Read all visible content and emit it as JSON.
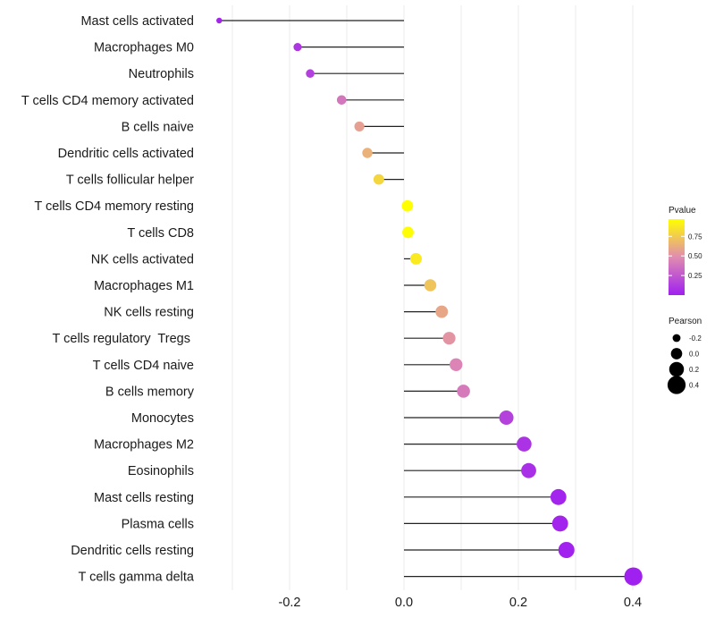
{
  "chart_data": {
    "type": "lollipop",
    "title": "",
    "xlabel": "",
    "ylabel": "",
    "xlim": [
      -0.335,
      0.42
    ],
    "x_ticks": [
      -0.2,
      0.0,
      0.2,
      0.4
    ],
    "x_tick_labels": [
      "-0.2",
      "0.0",
      "0.2",
      "0.4"
    ],
    "x_minor_grid": [
      -0.3,
      -0.1,
      0.1,
      0.3
    ],
    "grid": true,
    "categories": [
      "Mast cells activated",
      "Macrophages M0",
      "Neutrophils",
      "T cells CD4 memory activated",
      "B cells naive",
      "Dendritic cells activated",
      "T cells follicular helper",
      "T cells CD4 memory resting",
      "T cells CD8",
      "NK cells activated",
      "Macrophages M1",
      "NK cells resting",
      "T cells regulatory  Tregs ",
      "T cells CD4 naive",
      "B cells memory",
      "Monocytes",
      "Macrophages M2",
      "Eosinophils",
      "Mast cells resting",
      "Plasma cells",
      "Dendritic cells resting",
      "T cells gamma delta"
    ],
    "pearson": [
      -0.323,
      -0.186,
      -0.164,
      -0.109,
      -0.078,
      -0.064,
      -0.044,
      0.006,
      0.007,
      0.021,
      0.046,
      0.066,
      0.079,
      0.091,
      0.104,
      0.179,
      0.21,
      0.218,
      0.27,
      0.273,
      0.284,
      0.401
    ],
    "pvalue": [
      0.02,
      0.1,
      0.14,
      0.39,
      0.57,
      0.64,
      0.8,
      0.97,
      0.96,
      0.88,
      0.72,
      0.6,
      0.52,
      0.45,
      0.4,
      0.15,
      0.08,
      0.07,
      0.02,
      0.02,
      0.01,
      0.0
    ],
    "legend": {
      "color": {
        "title": "Pvalue",
        "ticks": [
          0.25,
          0.5,
          0.75
        ],
        "tick_labels": [
          "0.25",
          "0.50",
          "0.75"
        ],
        "range": [
          0.0,
          0.97
        ],
        "low_color": "#a020f0",
        "mid_color": "#e08cb0",
        "high_color": "#ffff00"
      },
      "size": {
        "title": "Pearson",
        "values": [
          -0.2,
          0.0,
          0.2,
          0.4
        ],
        "labels": [
          "-0.2",
          "0.0",
          "0.2",
          "0.4"
        ]
      },
      "placement": "right"
    }
  }
}
